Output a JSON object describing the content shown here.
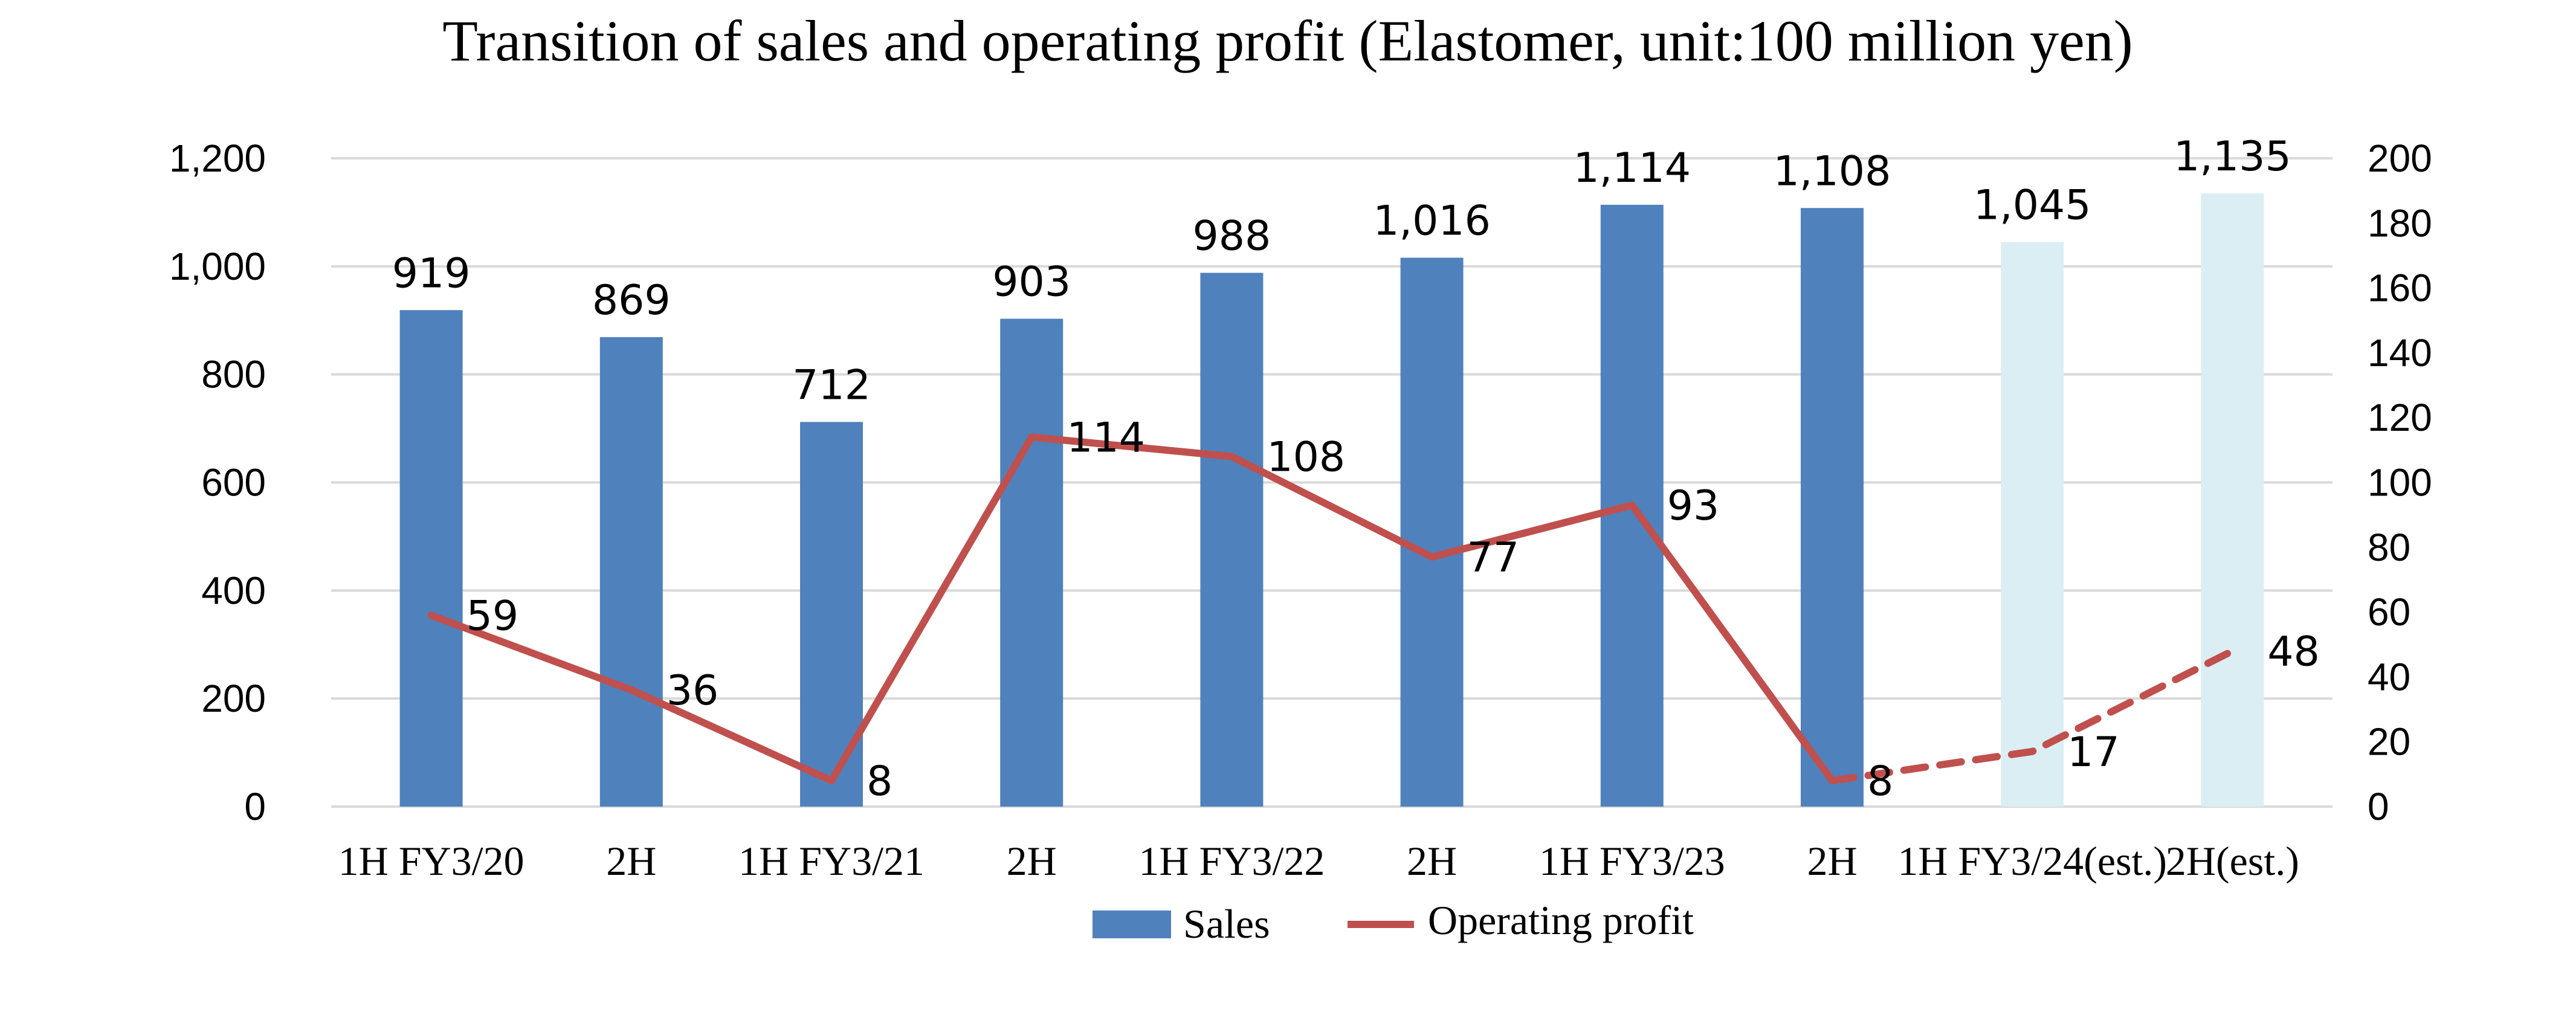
{
  "chart_data": {
    "type": "bar",
    "title": "Transition of sales and operating profit (Elastomer, unit:100 million yen)",
    "categories": [
      "1H FY3/20",
      "2H",
      "1H FY3/21",
      "2H",
      "1H FY3/22",
      "2H",
      "1H FY3/23",
      "2H",
      "1H FY3/24(est.)",
      "2H(est.)"
    ],
    "series": [
      {
        "name": "Sales",
        "type": "bar",
        "axis": "left",
        "values": [
          919,
          869,
          712,
          903,
          988,
          1016,
          1114,
          1108,
          1045,
          1135
        ],
        "labels": [
          "919",
          "869",
          "712",
          "903",
          "988",
          "1,016",
          "1,114",
          "1,108",
          "1,045",
          "1,135"
        ],
        "estimate_from_index": 8
      },
      {
        "name": "Operating profit",
        "type": "line",
        "axis": "right",
        "values": [
          59,
          36,
          8,
          114,
          108,
          77,
          93,
          8,
          17,
          48
        ],
        "labels": [
          "59",
          "36",
          "8",
          "114",
          "108",
          "77",
          "93",
          "8",
          "17",
          "48"
        ],
        "estimate_from_index": 7
      }
    ],
    "y_left": {
      "min": 0,
      "max": 1200,
      "ticks": [
        "0",
        "200",
        "400",
        "600",
        "800",
        "1,000",
        "1,200"
      ]
    },
    "y_right": {
      "min": 0,
      "max": 200,
      "ticks": [
        "0",
        "20",
        "40",
        "60",
        "80",
        "100",
        "120",
        "140",
        "160",
        "180",
        "200"
      ]
    },
    "grid": true,
    "legend_position": "bottom",
    "colors": {
      "bar": "#4f81bd",
      "bar_estimate": "#dbeef4",
      "line": "#c0504d",
      "grid": "#d9d9d9"
    }
  }
}
